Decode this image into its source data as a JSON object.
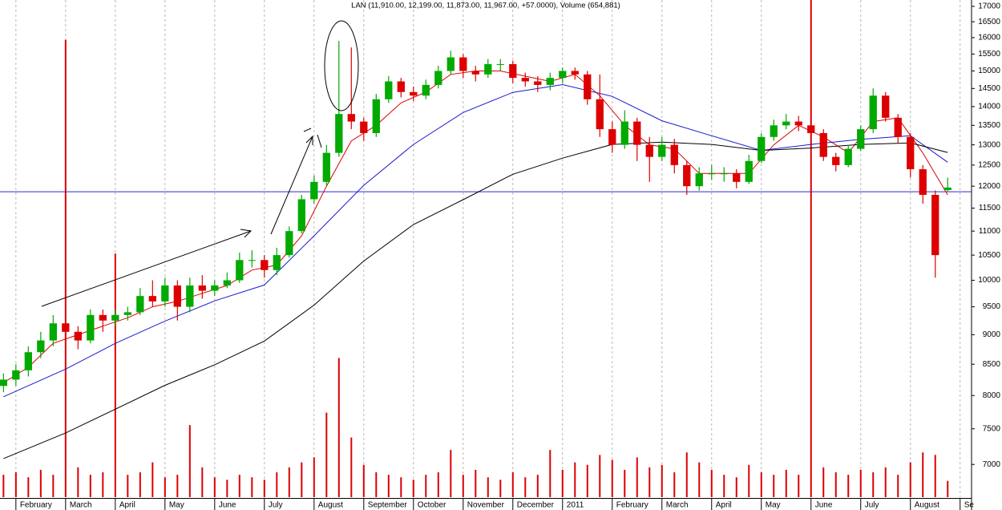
{
  "chart_data": {
    "type": "candlestick",
    "title": "LAN (11,910.00, 12,199.00, 11,873.00, 11,967.00, +57.0000), Volume (654,881)",
    "log_scale": true,
    "grid": true,
    "up_color": "#00aa00",
    "down_color": "#dd0000",
    "xlim": [
      -0.32,
      19.23
    ],
    "xticks": [
      {
        "value": 0,
        "label": "February"
      },
      {
        "value": 1,
        "label": "March"
      },
      {
        "value": 2,
        "label": "April"
      },
      {
        "value": 3,
        "label": "May"
      },
      {
        "value": 4,
        "label": "June"
      },
      {
        "value": 5,
        "label": "July"
      },
      {
        "value": 6,
        "label": "August"
      },
      {
        "value": 7,
        "label": "September"
      },
      {
        "value": 8,
        "label": "October"
      },
      {
        "value": 9,
        "label": "November"
      },
      {
        "value": 10,
        "label": "December"
      },
      {
        "value": 11,
        "label": "2011"
      },
      {
        "value": 12,
        "label": "February"
      },
      {
        "value": 13,
        "label": "March"
      },
      {
        "value": 14,
        "label": "April"
      },
      {
        "value": 15,
        "label": "May"
      },
      {
        "value": 16,
        "label": "June"
      },
      {
        "value": 17,
        "label": "July"
      },
      {
        "value": 18,
        "label": "August"
      },
      {
        "value": 19,
        "label": "Se"
      }
    ],
    "ylim": [
      6570,
      17210
    ],
    "yticks": [
      7000,
      7500,
      8000,
      8500,
      9000,
      9500,
      10000,
      10500,
      11000,
      11500,
      12000,
      12500,
      13000,
      13500,
      14000,
      14500,
      15000,
      15500,
      16000,
      16500,
      17000
    ],
    "y2lim": [
      0,
      20000000
    ],
    "x": [
      -0.25,
      0,
      0.25,
      0.5,
      0.75,
      1,
      1.25,
      1.5,
      1.75,
      2,
      2.25,
      2.5,
      2.75,
      3,
      3.25,
      3.5,
      3.75,
      4,
      4.25,
      4.5,
      4.75,
      5,
      5.25,
      5.5,
      5.75,
      6,
      6.25,
      6.5,
      6.75,
      7,
      7.25,
      7.5,
      7.75,
      8,
      8.25,
      8.5,
      8.75,
      9,
      9.25,
      9.5,
      9.75,
      10,
      10.25,
      10.5,
      10.75,
      11,
      11.25,
      11.5,
      11.75,
      12,
      12.25,
      12.5,
      12.75,
      13,
      13.25,
      13.5,
      13.75,
      14,
      14.25,
      14.5,
      14.75,
      15,
      15.25,
      15.5,
      15.75,
      16,
      16.25,
      16.5,
      16.75,
      17,
      17.25,
      17.5,
      17.75,
      18,
      18.25,
      18.5,
      18.75
    ],
    "open": [
      8150,
      8250,
      8400,
      8700,
      8900,
      9200,
      9050,
      8900,
      9350,
      9250,
      9350,
      9400,
      9700,
      9600,
      9900,
      9500,
      9900,
      9800,
      9900,
      10000,
      10400,
      10400,
      10200,
      10500,
      11000,
      11700,
      12100,
      12800,
      13800,
      13600,
      13300,
      14200,
      14700,
      14400,
      14300,
      14600,
      15000,
      15400,
      15000,
      14900,
      15200,
      15200,
      14800,
      14700,
      14600,
      14800,
      15000,
      14900,
      14200,
      13400,
      13000,
      13600,
      13000,
      12700,
      13000,
      12500,
      12000,
      12300,
      12300,
      12300,
      12100,
      12600,
      13200,
      13500,
      13600,
      13500,
      13300,
      12700,
      12500,
      12900,
      13400,
      14300,
      13700,
      13200,
      12400,
      11800,
      11910
    ],
    "high": [
      8350,
      8500,
      8800,
      9050,
      9350,
      9300,
      9150,
      9450,
      9450,
      9450,
      9500,
      9850,
      10000,
      10050,
      10000,
      10050,
      10100,
      10000,
      10150,
      10550,
      10600,
      10500,
      10650,
      11100,
      11800,
      12250,
      13000,
      15900,
      15700,
      13700,
      14350,
      14850,
      14800,
      14550,
      14750,
      15150,
      15600,
      15500,
      15150,
      15350,
      15350,
      15300,
      14950,
      14850,
      14950,
      15100,
      15100,
      15000,
      14900,
      13600,
      13900,
      13700,
      13200,
      13200,
      13150,
      12600,
      12450,
      12500,
      12450,
      12400,
      12750,
      13300,
      13650,
      13800,
      13750,
      13600,
      13400,
      12800,
      13000,
      13500,
      14500,
      14400,
      13800,
      13300,
      12500,
      11900,
      12199
    ],
    "low": [
      8050,
      8150,
      8300,
      8600,
      8800,
      8900,
      8750,
      8850,
      9050,
      9150,
      9250,
      9350,
      9500,
      9500,
      9250,
      9400,
      9650,
      9700,
      9850,
      9950,
      10250,
      10050,
      10100,
      10450,
      10950,
      11600,
      12000,
      12700,
      13400,
      13100,
      13200,
      14100,
      14250,
      14150,
      14200,
      14500,
      14900,
      14800,
      14700,
      14800,
      15000,
      14650,
      14550,
      14400,
      14450,
      14650,
      14750,
      14050,
      13200,
      12800,
      12900,
      12600,
      12100,
      12600,
      12300,
      11800,
      11900,
      12150,
      12100,
      11950,
      12050,
      12550,
      13100,
      13400,
      13350,
      13100,
      12600,
      12350,
      12450,
      12850,
      13300,
      13600,
      13050,
      12200,
      11600,
      10050,
      11873
    ],
    "close": [
      8250,
      8400,
      8700,
      8900,
      9200,
      9050,
      8900,
      9350,
      9250,
      9350,
      9400,
      9700,
      9600,
      9900,
      9500,
      9900,
      9800,
      9900,
      10000,
      10400,
      10400,
      10200,
      10500,
      11000,
      11700,
      12100,
      12800,
      13800,
      13600,
      13300,
      14200,
      14700,
      14400,
      14300,
      14600,
      15000,
      15400,
      15000,
      14900,
      15200,
      15200,
      14800,
      14700,
      14600,
      14800,
      15000,
      14900,
      14200,
      13400,
      13000,
      13600,
      13000,
      12700,
      13000,
      12500,
      12000,
      12300,
      12300,
      12300,
      12100,
      12600,
      13200,
      13500,
      13600,
      13500,
      13300,
      12700,
      12500,
      12900,
      13400,
      14300,
      13700,
      13200,
      12400,
      11800,
      10500,
      11967
    ],
    "volume": {
      "type": "bar",
      "axis": "y2",
      "color": "#dd0000",
      "values": [
        900000,
        1000000,
        800000,
        1100000,
        900000,
        18400000,
        1200000,
        900000,
        1000000,
        9800000,
        900000,
        1000000,
        1400000,
        800000,
        900000,
        2900000,
        1200000,
        800000,
        700000,
        900000,
        800000,
        700000,
        1000000,
        1200000,
        1400000,
        1600000,
        3400000,
        5600000,
        2400000,
        1300000,
        1000000,
        900000,
        800000,
        700000,
        900000,
        1000000,
        1900000,
        900000,
        1100000,
        800000,
        700000,
        1000000,
        800000,
        900000,
        1900000,
        1100000,
        1400000,
        1300000,
        1700000,
        1500000,
        1100000,
        1600000,
        1200000,
        1300000,
        1000000,
        1800000,
        1400000,
        1100000,
        900000,
        800000,
        1300000,
        1000000,
        900000,
        1100000,
        900000,
        20000000,
        1200000,
        1000000,
        900000,
        1100000,
        1000000,
        1200000,
        900000,
        1400000,
        1800000,
        1700000,
        654881
      ]
    },
    "series": [
      {
        "type": "line",
        "color": "#dd0000",
        "x": [
          -0.25,
          0.25,
          0.75,
          1.25,
          1.75,
          2.25,
          2.75,
          3.25,
          3.75,
          4.25,
          4.75,
          5.25,
          5.75,
          6.25,
          6.75,
          7.25,
          7.75,
          8.25,
          8.75,
          9.25,
          9.75,
          10.25,
          10.75,
          11.25,
          11.75,
          12.25,
          12.75,
          13.25,
          13.75,
          14.25,
          14.75,
          15.25,
          15.75,
          16.25,
          16.75,
          17.25,
          17.75,
          18.25,
          18.75
        ],
        "values": [
          8200,
          8450,
          8850,
          9000,
          9150,
          9300,
          9500,
          9600,
          9750,
          9900,
          10200,
          10300,
          10900,
          12000,
          13100,
          13500,
          14100,
          14400,
          14900,
          15000,
          15000,
          14850,
          14700,
          14900,
          14300,
          13500,
          13000,
          12900,
          12300,
          12300,
          12300,
          13000,
          13500,
          13200,
          12800,
          13600,
          13700,
          12800,
          11800
        ]
      },
      {
        "type": "line",
        "color": "#1a1ad0",
        "x": [
          -0.25,
          1,
          2,
          3,
          4,
          5,
          6,
          7,
          8,
          9,
          10,
          11,
          12,
          13,
          14,
          15,
          16,
          17,
          18,
          18.75
        ],
        "values": [
          7980,
          8420,
          8850,
          9240,
          9610,
          9910,
          10900,
          12020,
          13010,
          13840,
          14390,
          14610,
          14280,
          13620,
          13230,
          12860,
          13010,
          13140,
          13230,
          12570
        ]
      },
      {
        "type": "line",
        "color": "#000000",
        "x": [
          -0.25,
          1,
          2,
          3,
          4,
          5,
          6,
          7,
          8,
          9,
          10,
          11,
          12,
          13,
          14,
          15,
          16,
          17,
          18,
          18.75
        ],
        "values": [
          7080,
          7440,
          7790,
          8160,
          8490,
          8890,
          9530,
          10380,
          11140,
          11690,
          12280,
          12670,
          13010,
          13070,
          13010,
          12860,
          12920,
          13010,
          13050,
          12810
        ]
      }
    ],
    "hline": {
      "value": 11870,
      "color": "#2a2ad8"
    }
  }
}
